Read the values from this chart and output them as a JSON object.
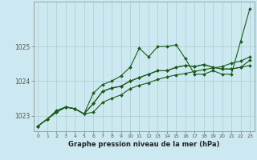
{
  "xlabel": "Graphe pression niveau de la mer (hPa)",
  "bg_color": "#cce8f0",
  "grid_color": "#aacccc",
  "line_color": "#1a5c1a",
  "xlim": [
    -0.5,
    23.5
  ],
  "ylim": [
    1022.55,
    1026.3
  ],
  "yticks": [
    1023,
    1024,
    1025
  ],
  "xticks": [
    0,
    1,
    2,
    3,
    4,
    5,
    6,
    7,
    8,
    9,
    10,
    11,
    12,
    13,
    14,
    15,
    16,
    17,
    18,
    19,
    20,
    21,
    22,
    23
  ],
  "series1": [
    1022.7,
    1022.9,
    1023.1,
    1023.25,
    1023.2,
    1023.05,
    1023.65,
    1023.9,
    1024.0,
    1024.15,
    1024.4,
    1024.95,
    1024.7,
    1025.0,
    1025.0,
    1025.05,
    1024.65,
    1024.2,
    1024.2,
    1024.3,
    1024.2,
    1024.2,
    1025.15,
    1026.1
  ],
  "series2": [
    1022.7,
    1022.9,
    1023.1,
    1023.25,
    1023.2,
    1023.05,
    1023.35,
    1023.7,
    1023.8,
    1023.85,
    1024.0,
    1024.1,
    1024.2,
    1024.3,
    1024.3,
    1024.4,
    1024.45,
    1024.42,
    1024.48,
    1024.4,
    1024.35,
    1024.35,
    1024.4,
    1024.45
  ],
  "series3": [
    1022.7,
    1022.9,
    1023.1,
    1023.25,
    1023.2,
    1023.05,
    1023.35,
    1023.7,
    1023.8,
    1023.85,
    1024.0,
    1024.1,
    1024.2,
    1024.3,
    1024.3,
    1024.4,
    1024.45,
    1024.42,
    1024.48,
    1024.4,
    1024.35,
    1024.35,
    1024.4,
    1024.6
  ],
  "series4": [
    1022.7,
    1022.9,
    1023.15,
    1023.25,
    1023.2,
    1023.05,
    1023.1,
    1023.38,
    1023.5,
    1023.6,
    1023.78,
    1023.88,
    1023.95,
    1024.05,
    1024.12,
    1024.18,
    1024.22,
    1024.28,
    1024.33,
    1024.38,
    1024.42,
    1024.52,
    1024.58,
    1024.7
  ]
}
